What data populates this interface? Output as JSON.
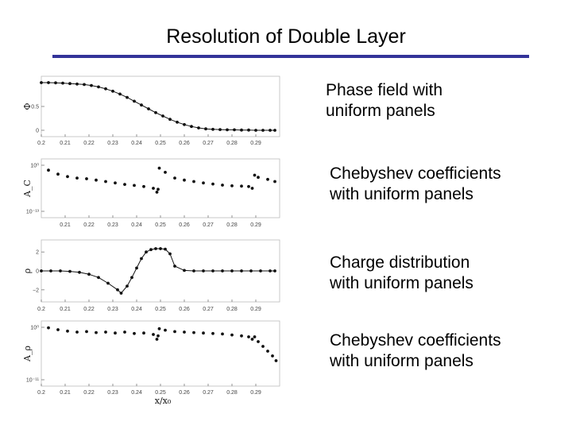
{
  "slide": {
    "title": "Resolution of Double Layer",
    "accent_color": "#333399"
  },
  "captions": [
    {
      "line1": "Phase field with",
      "line2": "uniform panels"
    },
    {
      "line1": "Chebyshev coefficients",
      "line2": "with uniform panels"
    },
    {
      "line1": "Charge distribution",
      "line2": "with uniform panels"
    },
    {
      "line1": "Chebyshev coefficients",
      "line2": "with uniform panels"
    }
  ],
  "chart_data": [
    {
      "type": "line",
      "ylabel": "Φ",
      "xlabel": "",
      "xlim": [
        0.2,
        0.3
      ],
      "ylim": [
        0,
        1
      ],
      "x_ticks": [
        "0.2",
        "0.21",
        "0.22",
        "0.23",
        "0.24",
        "0.25",
        "0.26",
        "0.27",
        "0.28",
        "0.29"
      ],
      "y_ticks": [
        {
          "value": 0.5,
          "label": "0.5"
        },
        {
          "value": 0,
          "label": "0"
        }
      ],
      "series": [
        {
          "x": [
            0.2,
            0.203,
            0.206,
            0.209,
            0.212,
            0.215,
            0.218,
            0.221,
            0.224,
            0.227,
            0.23,
            0.233,
            0.236,
            0.239,
            0.242,
            0.245,
            0.248,
            0.251,
            0.254,
            0.257,
            0.26,
            0.263,
            0.266,
            0.269,
            0.272,
            0.275,
            0.278,
            0.281,
            0.284,
            0.287,
            0.29,
            0.293,
            0.296,
            0.298
          ],
          "y": [
            1.0,
            1.0,
            0.995,
            0.99,
            0.98,
            0.97,
            0.96,
            0.94,
            0.91,
            0.87,
            0.82,
            0.76,
            0.69,
            0.61,
            0.53,
            0.45,
            0.37,
            0.3,
            0.23,
            0.17,
            0.12,
            0.08,
            0.05,
            0.03,
            0.02,
            0.015,
            0.01,
            0.01,
            0.005,
            0.005,
            0.0,
            0.0,
            0.0,
            0.0
          ]
        }
      ]
    },
    {
      "type": "scatter",
      "ylabel": "A_C",
      "xlabel": "",
      "xlim": [
        0.2,
        0.3
      ],
      "ylim": [
        -13,
        0
      ],
      "log_y": true,
      "x_ticks": [
        "0.21",
        "0.22",
        "0.23",
        "0.24",
        "0.25",
        "0.26",
        "0.27",
        "0.28",
        "0.29"
      ],
      "y_ticks": [
        {
          "value": 0,
          "label": "10⁰"
        },
        {
          "value": -13,
          "label": "10⁻¹³"
        }
      ],
      "series": [
        {
          "x": [
            0.203,
            0.207,
            0.211,
            0.215,
            0.219,
            0.223,
            0.227,
            0.231,
            0.235,
            0.239,
            0.243,
            0.247,
            0.2485,
            0.249,
            0.2495,
            0.252,
            0.256,
            0.26,
            0.264,
            0.268,
            0.272,
            0.276,
            0.28,
            0.284,
            0.287,
            0.2885,
            0.2895,
            0.291,
            0.295,
            0.298
          ],
          "y": [
            -1.4,
            -2.5,
            -3.2,
            -3.6,
            -3.8,
            -4.2,
            -4.6,
            -5.0,
            -5.4,
            -5.7,
            -6.0,
            -6.5,
            -7.6,
            -6.8,
            -0.8,
            -2.0,
            -3.6,
            -4.2,
            -4.6,
            -5.0,
            -5.3,
            -5.6,
            -5.8,
            -5.9,
            -6.0,
            -6.5,
            -2.8,
            -3.4,
            -4.0,
            -4.6
          ]
        }
      ]
    },
    {
      "type": "line",
      "ylabel": "ρ",
      "xlabel": "",
      "xlim": [
        0.2,
        0.3
      ],
      "ylim": [
        -2.6,
        2.6
      ],
      "x_ticks": [
        "0.2",
        "0.21",
        "0.22",
        "0.23",
        "0.24",
        "0.25",
        "0.26",
        "0.27",
        "0.28",
        "0.29"
      ],
      "y_ticks": [
        {
          "value": 2,
          "label": "2"
        },
        {
          "value": 0,
          "label": "0"
        },
        {
          "value": -2,
          "label": "−2"
        }
      ],
      "series": [
        {
          "x": [
            0.2,
            0.204,
            0.208,
            0.212,
            0.216,
            0.22,
            0.224,
            0.228,
            0.232,
            0.2335,
            0.236,
            0.238,
            0.24,
            0.242,
            0.244,
            0.246,
            0.248,
            0.25,
            0.252,
            0.254,
            0.256,
            0.26,
            0.264,
            0.268,
            0.272,
            0.276,
            0.28,
            0.284,
            0.288,
            0.292,
            0.296,
            0.298
          ],
          "y": [
            0.0,
            0.0,
            0.0,
            -0.05,
            -0.15,
            -0.35,
            -0.7,
            -1.3,
            -2.0,
            -2.35,
            -1.6,
            -0.7,
            0.3,
            1.3,
            2.0,
            2.25,
            2.35,
            2.35,
            2.3,
            1.8,
            0.5,
            0.05,
            0.0,
            0.0,
            0.0,
            0.0,
            0.0,
            0.0,
            0.0,
            0.0,
            0.0,
            0.0
          ]
        }
      ]
    },
    {
      "type": "scatter",
      "ylabel": "A_ρ",
      "xlabel": "x/x₀",
      "xlim": [
        0.2,
        0.3
      ],
      "ylim": [
        -11,
        0
      ],
      "log_y": true,
      "x_ticks": [
        "0.2",
        "0.21",
        "0.22",
        "0.23",
        "0.24",
        "0.25",
        "0.26",
        "0.27",
        "0.28",
        "0.29"
      ],
      "y_ticks": [
        {
          "value": 0,
          "label": "10⁰"
        },
        {
          "value": -11,
          "label": "10⁻¹¹"
        }
      ],
      "series": [
        {
          "x": [
            0.203,
            0.207,
            0.211,
            0.215,
            0.219,
            0.223,
            0.227,
            0.231,
            0.235,
            0.239,
            0.243,
            0.247,
            0.2485,
            0.249,
            0.2495,
            0.252,
            0.256,
            0.26,
            0.264,
            0.268,
            0.272,
            0.276,
            0.28,
            0.284,
            0.287,
            0.2885,
            0.2895,
            0.291,
            0.293,
            0.295,
            0.297,
            0.2985
          ],
          "y": [
            -0.1,
            -0.5,
            -0.8,
            -1.0,
            -0.9,
            -1.1,
            -1.0,
            -1.2,
            -1.0,
            -1.3,
            -1.2,
            -1.5,
            -2.5,
            -1.8,
            -0.3,
            -0.6,
            -0.9,
            -1.0,
            -1.1,
            -1.2,
            -1.3,
            -1.4,
            -1.6,
            -1.8,
            -2.0,
            -2.5,
            -2.0,
            -3.0,
            -4.0,
            -5.0,
            -6.0,
            -7.0
          ]
        }
      ]
    }
  ]
}
